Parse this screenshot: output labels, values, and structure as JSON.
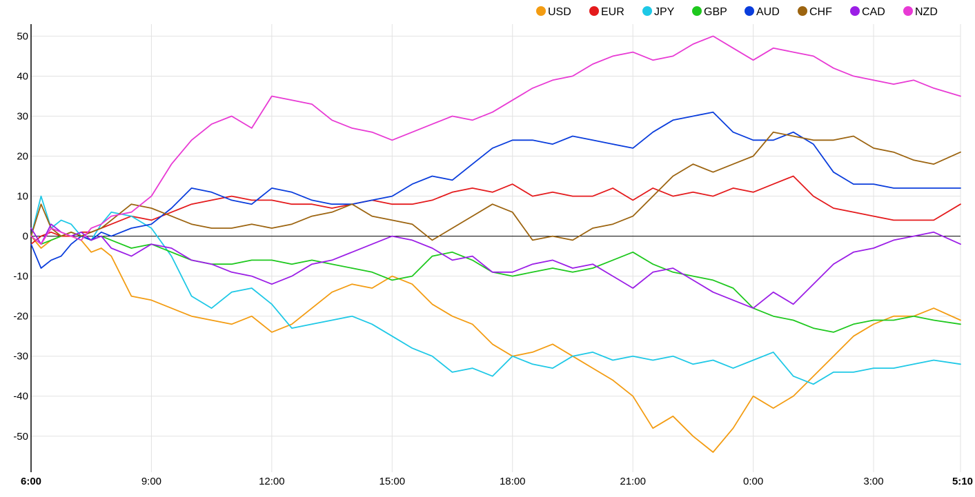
{
  "chart_data": {
    "type": "line",
    "title": "",
    "xlabel": "",
    "ylabel": "",
    "ylim": [
      -59,
      53
    ],
    "yticks": [
      50,
      40,
      30,
      20,
      10,
      0,
      -10,
      -20,
      -30,
      -40,
      -50
    ],
    "xticks": [
      {
        "label": "6:00",
        "value": 0,
        "bold": true
      },
      {
        "label": "9:00",
        "value": 180,
        "bold": false
      },
      {
        "label": "12:00",
        "value": 360,
        "bold": false
      },
      {
        "label": "15:00",
        "value": 540,
        "bold": false
      },
      {
        "label": "18:00",
        "value": 720,
        "bold": false
      },
      {
        "label": "21:00",
        "value": 900,
        "bold": false
      },
      {
        "label": "0:00",
        "value": 1080,
        "bold": false
      },
      {
        "label": "3:00",
        "value": 1260,
        "bold": false
      },
      {
        "label": "5:10",
        "value": 1390,
        "bold": true
      }
    ],
    "x_unit": "minutes since 6:00",
    "xlim": [
      0,
      1390
    ],
    "grid": true,
    "legend_position": "top-right",
    "series": [
      {
        "name": "USD",
        "color": "#f39c12",
        "x": [
          0,
          15,
          30,
          45,
          60,
          75,
          90,
          105,
          120,
          150,
          180,
          210,
          240,
          270,
          300,
          330,
          360,
          390,
          420,
          450,
          480,
          510,
          540,
          570,
          600,
          630,
          660,
          690,
          720,
          750,
          780,
          810,
          840,
          870,
          900,
          930,
          960,
          990,
          1020,
          1050,
          1080,
          1110,
          1140,
          1170,
          1200,
          1230,
          1260,
          1290,
          1320,
          1350,
          1390
        ],
        "values": [
          0,
          -3,
          -1,
          0,
          0,
          -1,
          -4,
          -3,
          -5,
          -15,
          -16,
          -18,
          -20,
          -21,
          -22,
          -20,
          -24,
          -22,
          -18,
          -14,
          -12,
          -13,
          -10,
          -12,
          -17,
          -20,
          -22,
          -27,
          -30,
          -29,
          -27,
          -30,
          -33,
          -36,
          -40,
          -48,
          -45,
          -50,
          -54,
          -48,
          -40,
          -43,
          -40,
          -35,
          -30,
          -25,
          -22,
          -20,
          -20,
          -18,
          -21
        ]
      },
      {
        "name": "EUR",
        "color": "#e41a1c",
        "x": [
          0,
          15,
          30,
          45,
          60,
          75,
          90,
          105,
          120,
          150,
          180,
          210,
          240,
          270,
          300,
          330,
          360,
          390,
          420,
          450,
          480,
          510,
          540,
          570,
          600,
          630,
          660,
          690,
          720,
          750,
          780,
          810,
          840,
          870,
          900,
          930,
          960,
          990,
          1020,
          1050,
          1080,
          1110,
          1140,
          1170,
          1200,
          1230,
          1260,
          1290,
          1320,
          1350,
          1390
        ],
        "values": [
          -2,
          0,
          1,
          0,
          0,
          1,
          1,
          2,
          3,
          5,
          4,
          6,
          8,
          9,
          10,
          9,
          9,
          8,
          8,
          7,
          8,
          9,
          8,
          8,
          9,
          11,
          12,
          11,
          13,
          10,
          11,
          10,
          10,
          12,
          9,
          12,
          10,
          11,
          10,
          12,
          11,
          13,
          15,
          10,
          7,
          6,
          5,
          4,
          4,
          4,
          8
        ]
      },
      {
        "name": "JPY",
        "color": "#1ec8e6",
        "x": [
          0,
          15,
          30,
          45,
          60,
          75,
          90,
          105,
          120,
          150,
          180,
          210,
          240,
          270,
          300,
          330,
          360,
          390,
          420,
          450,
          480,
          510,
          540,
          570,
          600,
          630,
          660,
          690,
          720,
          750,
          780,
          810,
          840,
          870,
          900,
          930,
          960,
          990,
          1020,
          1050,
          1080,
          1110,
          1140,
          1170,
          1200,
          1230,
          1260,
          1290,
          1320,
          1350,
          1390
        ],
        "values": [
          0,
          10,
          2,
          4,
          3,
          0,
          -1,
          3,
          6,
          5,
          2,
          -5,
          -15,
          -18,
          -14,
          -13,
          -17,
          -23,
          -22,
          -21,
          -20,
          -22,
          -25,
          -28,
          -30,
          -34,
          -33,
          -35,
          -30,
          -32,
          -33,
          -30,
          -29,
          -31,
          -30,
          -31,
          -30,
          -32,
          -31,
          -33,
          -31,
          -29,
          -35,
          -37,
          -34,
          -34,
          -33,
          -33,
          -32,
          -31,
          -32
        ]
      },
      {
        "name": "GBP",
        "color": "#1ec81e",
        "x": [
          0,
          15,
          30,
          45,
          60,
          75,
          90,
          105,
          120,
          150,
          180,
          210,
          240,
          270,
          300,
          330,
          360,
          390,
          420,
          450,
          480,
          510,
          540,
          570,
          600,
          630,
          660,
          690,
          720,
          750,
          780,
          810,
          840,
          870,
          900,
          930,
          960,
          990,
          1020,
          1050,
          1080,
          1110,
          1140,
          1170,
          1200,
          1230,
          1260,
          1290,
          1320,
          1350,
          1390
        ],
        "values": [
          0,
          -2,
          -1,
          0,
          1,
          0,
          -1,
          0,
          -1,
          -3,
          -2,
          -4,
          -6,
          -7,
          -7,
          -6,
          -6,
          -7,
          -6,
          -7,
          -8,
          -9,
          -11,
          -10,
          -5,
          -4,
          -6,
          -9,
          -10,
          -9,
          -8,
          -9,
          -8,
          -6,
          -4,
          -7,
          -9,
          -10,
          -11,
          -13,
          -18,
          -20,
          -21,
          -23,
          -24,
          -22,
          -21,
          -21,
          -20,
          -21,
          -22
        ]
      },
      {
        "name": "AUD",
        "color": "#0a3ddc",
        "x": [
          0,
          15,
          30,
          45,
          60,
          75,
          90,
          105,
          120,
          150,
          180,
          210,
          240,
          270,
          300,
          330,
          360,
          390,
          420,
          450,
          480,
          510,
          540,
          570,
          600,
          630,
          660,
          690,
          720,
          750,
          780,
          810,
          840,
          870,
          900,
          930,
          960,
          990,
          1020,
          1050,
          1080,
          1110,
          1140,
          1170,
          1200,
          1230,
          1260,
          1290,
          1320,
          1350,
          1390
        ],
        "values": [
          -2,
          -8,
          -6,
          -5,
          -2,
          0,
          -1,
          1,
          0,
          2,
          3,
          7,
          12,
          11,
          9,
          8,
          12,
          11,
          9,
          8,
          8,
          9,
          10,
          13,
          15,
          14,
          18,
          22,
          24,
          24,
          23,
          25,
          24,
          23,
          22,
          26,
          29,
          30,
          31,
          26,
          24,
          24,
          26,
          23,
          16,
          13,
          13,
          12,
          12,
          12,
          12
        ]
      },
      {
        "name": "CHF",
        "color": "#9c6410",
        "x": [
          0,
          15,
          30,
          45,
          60,
          75,
          90,
          105,
          120,
          150,
          180,
          210,
          240,
          270,
          300,
          330,
          360,
          390,
          420,
          450,
          480,
          510,
          540,
          570,
          600,
          630,
          660,
          690,
          720,
          750,
          780,
          810,
          840,
          870,
          900,
          930,
          960,
          990,
          1020,
          1050,
          1080,
          1110,
          1140,
          1170,
          1200,
          1230,
          1260,
          1290,
          1320,
          1350,
          1390
        ],
        "values": [
          0,
          8,
          2,
          0,
          1,
          0,
          1,
          2,
          4,
          8,
          7,
          5,
          3,
          2,
          2,
          3,
          2,
          3,
          5,
          6,
          8,
          5,
          4,
          3,
          -1,
          2,
          5,
          8,
          6,
          -1,
          0,
          -1,
          2,
          3,
          5,
          10,
          15,
          18,
          16,
          18,
          20,
          26,
          25,
          24,
          24,
          25,
          22,
          21,
          19,
          18,
          21
        ]
      },
      {
        "name": "CAD",
        "color": "#9b1ee6",
        "x": [
          0,
          15,
          30,
          45,
          60,
          75,
          90,
          105,
          120,
          150,
          180,
          210,
          240,
          270,
          300,
          330,
          360,
          390,
          420,
          450,
          480,
          510,
          540,
          570,
          600,
          630,
          660,
          690,
          720,
          750,
          780,
          810,
          840,
          870,
          900,
          930,
          960,
          990,
          1020,
          1050,
          1080,
          1110,
          1140,
          1170,
          1200,
          1230,
          1260,
          1290,
          1320,
          1350,
          1390
        ],
        "values": [
          2,
          -2,
          3,
          1,
          0,
          1,
          -1,
          0,
          -3,
          -5,
          -2,
          -3,
          -6,
          -7,
          -9,
          -10,
          -12,
          -10,
          -7,
          -6,
          -4,
          -2,
          0,
          -1,
          -3,
          -6,
          -5,
          -9,
          -9,
          -7,
          -6,
          -8,
          -7,
          -10,
          -13,
          -9,
          -8,
          -11,
          -14,
          -16,
          -18,
          -14,
          -17,
          -12,
          -7,
          -4,
          -3,
          -1,
          0,
          1,
          -2
        ]
      },
      {
        "name": "NZD",
        "color": "#e83ad4",
        "x": [
          0,
          15,
          30,
          45,
          60,
          75,
          90,
          105,
          120,
          150,
          180,
          210,
          240,
          270,
          300,
          330,
          360,
          390,
          420,
          450,
          480,
          510,
          540,
          570,
          600,
          630,
          660,
          690,
          720,
          750,
          780,
          810,
          840,
          870,
          900,
          930,
          960,
          990,
          1020,
          1050,
          1080,
          1110,
          1140,
          1170,
          1200,
          1230,
          1260,
          1290,
          1320,
          1350,
          1390
        ],
        "values": [
          0,
          -2,
          2,
          1,
          0,
          -1,
          2,
          3,
          5,
          6,
          10,
          18,
          24,
          28,
          30,
          27,
          35,
          34,
          33,
          29,
          27,
          26,
          24,
          26,
          28,
          30,
          29,
          31,
          34,
          37,
          39,
          40,
          43,
          45,
          46,
          44,
          45,
          48,
          50,
          47,
          44,
          47,
          46,
          45,
          42,
          40,
          39,
          38,
          39,
          37,
          35
        ]
      }
    ]
  }
}
